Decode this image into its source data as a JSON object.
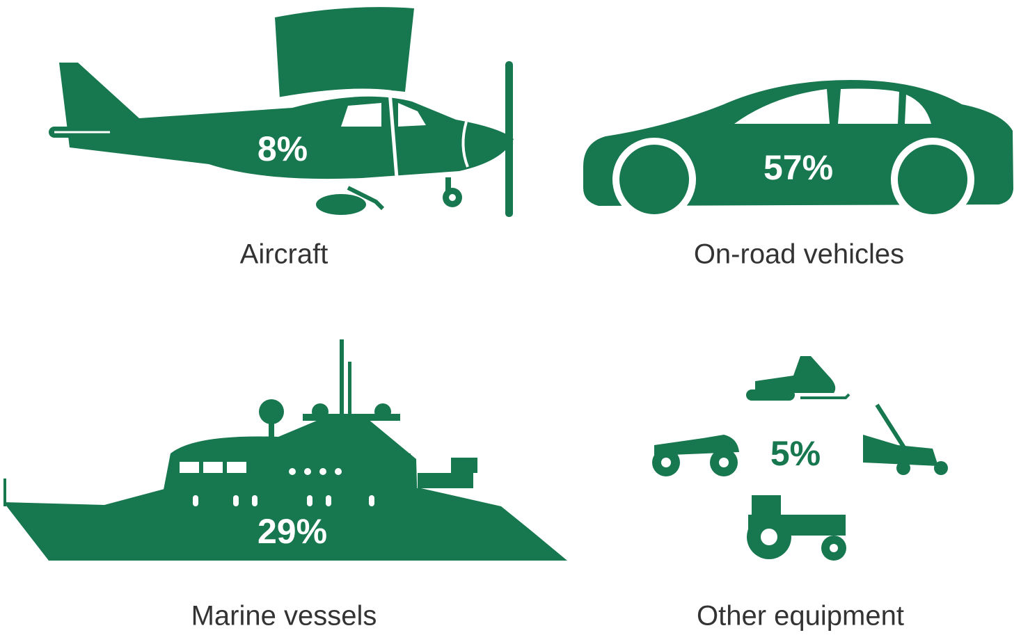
{
  "items": [
    {
      "label": "Aircraft",
      "share": "8%"
    },
    {
      "label": "On-road vehicles",
      "share": "57%"
    },
    {
      "label": "Marine vessels",
      "share": "29%"
    },
    {
      "label": "Other equipment",
      "share": "5%"
    }
  ]
}
